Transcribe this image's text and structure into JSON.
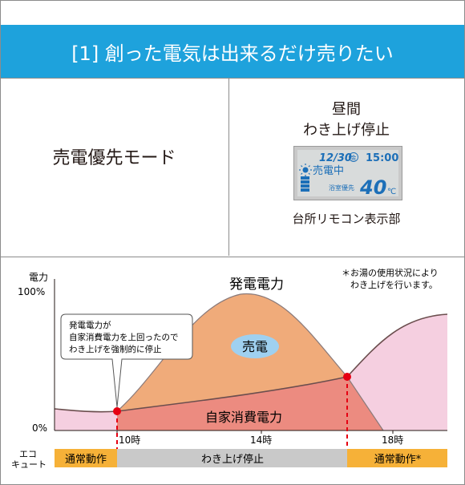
{
  "header": {
    "title": "[1] 創った電気は出来るだけ売りたい"
  },
  "mode": {
    "label": "売電優先モード"
  },
  "remote": {
    "title_line1": "昼間",
    "title_line2": "わき上げ停止",
    "caption": "台所リモコン表示部",
    "display": {
      "date": "12/30",
      "weekday": "金",
      "time": "15:00",
      "status": "売電中",
      "mode": "浴室優先",
      "temperature": "40",
      "unit": "℃"
    }
  },
  "chart": {
    "y_label": "電力",
    "y_max": "100%",
    "y_min": "0%",
    "note_line1": "＊お湯の使用状況により",
    "note_line2": "わき上げを行います。",
    "generation_label": "発電電力",
    "consumption_label": "自家消費電力",
    "sell_label": "売電",
    "callout_line1": "発電電力が",
    "callout_line2": "自家消費電力を上回ったので",
    "callout_line3": "わき上げを強制的に停止",
    "x_ticks": [
      "10時",
      "14時",
      "18時"
    ]
  },
  "ecocute": {
    "label_line1": "エコ",
    "label_line2": "キュート",
    "segments": [
      "通常動作",
      "わき上げ停止",
      "通常動作*"
    ]
  },
  "colors": {
    "header_bg": "#1ea2dc",
    "generation_fill": "#f0ab7a",
    "consumption_fill": "#ec8b80",
    "water_heating_fill": "#f5cfe0",
    "sell_badge": "#9fd0f0",
    "normal_op": "#f6b138",
    "stop_op": "#c9c9c9",
    "marker": "#e60012"
  },
  "chart_data": {
    "type": "area",
    "x_ticks": [
      "10時",
      "14時",
      "18時"
    ],
    "y_axis_range": [
      "0%",
      "100%"
    ],
    "series": [
      {
        "name": "発電電力"
      },
      {
        "name": "自家消費電力"
      }
    ],
    "crossings": [
      "10時",
      "約16時30分"
    ]
  }
}
